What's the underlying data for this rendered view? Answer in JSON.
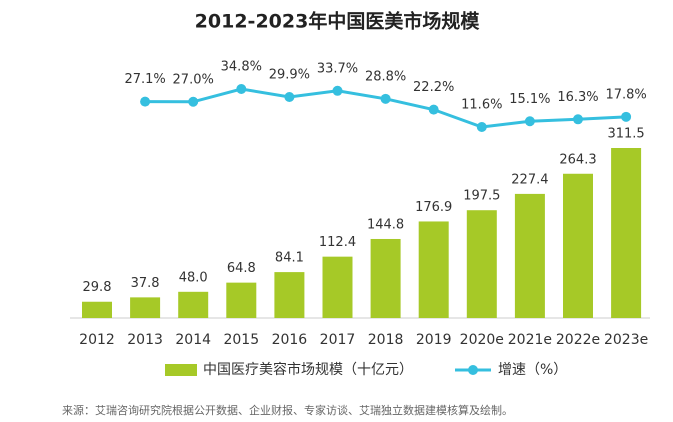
{
  "chart_data": {
    "type": "bar",
    "title": "2012-2023年中国医美市场规模",
    "categories": [
      "2012",
      "2013",
      "2014",
      "2015",
      "2016",
      "2017",
      "2018",
      "2019",
      "2020e",
      "2021e",
      "2022e",
      "2023e"
    ],
    "series": [
      {
        "name": "中国医疗美容市场规模（十亿元）",
        "type": "bar",
        "color": "#a6c927",
        "values": [
          29.8,
          37.8,
          48.0,
          64.8,
          84.1,
          112.4,
          144.8,
          176.9,
          197.5,
          227.4,
          264.3,
          311.5
        ],
        "value_labels": [
          "29.8",
          "37.8",
          "48.0",
          "64.8",
          "84.1",
          "112.4",
          "144.8",
          "176.9",
          "197.5",
          "227.4",
          "264.3",
          "311.5"
        ]
      },
      {
        "name": "增速（%）",
        "type": "line",
        "color": "#35bfdf",
        "values": [
          null,
          27.1,
          27.0,
          34.8,
          29.9,
          33.7,
          28.8,
          22.2,
          11.6,
          15.1,
          16.3,
          17.8
        ],
        "value_labels": [
          null,
          "27.1%",
          "27.0%",
          "34.8%",
          "29.9%",
          "33.7%",
          "28.8%",
          "22.2%",
          "11.6%",
          "15.1%",
          "16.3%",
          "17.8%"
        ]
      }
    ],
    "source": "来源：艾瑞咨询研究院根据公开数据、企业财报、专家访谈、艾瑞独立数据建模核算及绘制。"
  }
}
